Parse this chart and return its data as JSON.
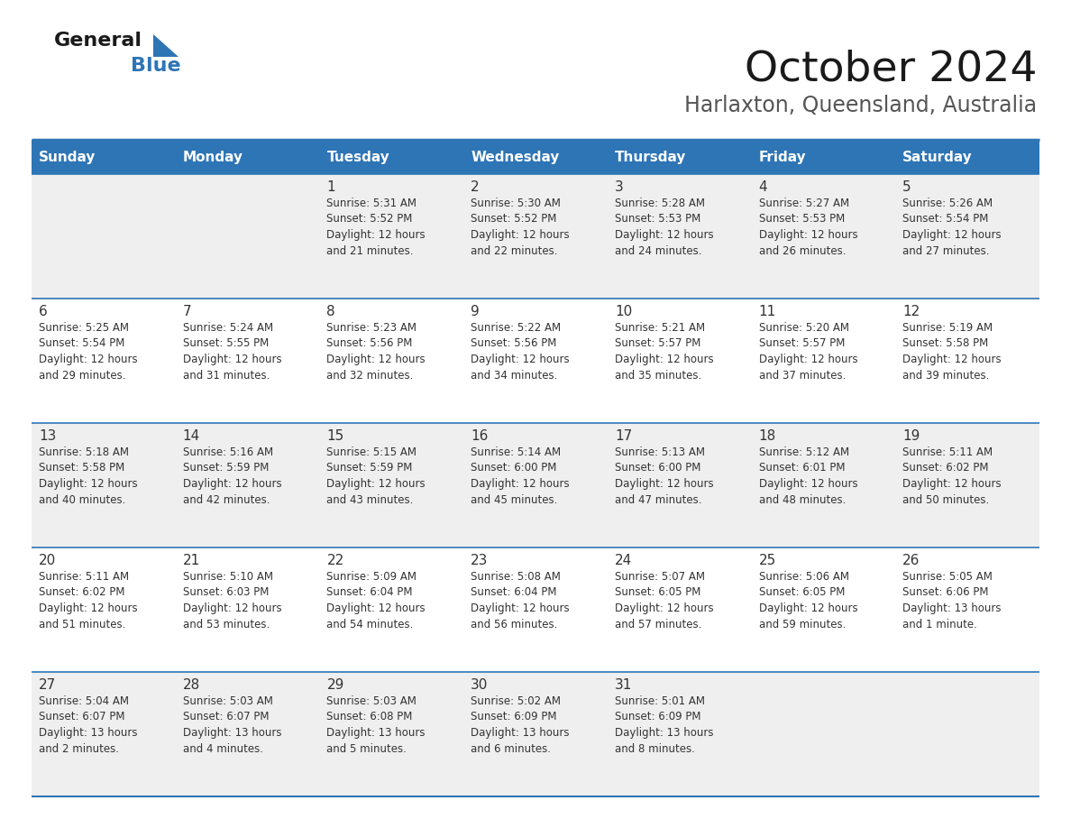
{
  "title": "October 2024",
  "subtitle": "Harlaxton, Queensland, Australia",
  "header_bg": "#2E75B6",
  "header_text": "#FFFFFF",
  "row_bg_light": "#EFEFEF",
  "row_bg_white": "#FFFFFF",
  "cell_text": "#333333",
  "border_color": "#2E75B6",
  "divider_color": "#2E75B6",
  "days_of_week": [
    "Sunday",
    "Monday",
    "Tuesday",
    "Wednesday",
    "Thursday",
    "Friday",
    "Saturday"
  ],
  "weeks": [
    {
      "days": [
        {
          "day": "",
          "info": ""
        },
        {
          "day": "",
          "info": ""
        },
        {
          "day": "1",
          "info": "Sunrise: 5:31 AM\nSunset: 5:52 PM\nDaylight: 12 hours\nand 21 minutes."
        },
        {
          "day": "2",
          "info": "Sunrise: 5:30 AM\nSunset: 5:52 PM\nDaylight: 12 hours\nand 22 minutes."
        },
        {
          "day": "3",
          "info": "Sunrise: 5:28 AM\nSunset: 5:53 PM\nDaylight: 12 hours\nand 24 minutes."
        },
        {
          "day": "4",
          "info": "Sunrise: 5:27 AM\nSunset: 5:53 PM\nDaylight: 12 hours\nand 26 minutes."
        },
        {
          "day": "5",
          "info": "Sunrise: 5:26 AM\nSunset: 5:54 PM\nDaylight: 12 hours\nand 27 minutes."
        }
      ]
    },
    {
      "days": [
        {
          "day": "6",
          "info": "Sunrise: 5:25 AM\nSunset: 5:54 PM\nDaylight: 12 hours\nand 29 minutes."
        },
        {
          "day": "7",
          "info": "Sunrise: 5:24 AM\nSunset: 5:55 PM\nDaylight: 12 hours\nand 31 minutes."
        },
        {
          "day": "8",
          "info": "Sunrise: 5:23 AM\nSunset: 5:56 PM\nDaylight: 12 hours\nand 32 minutes."
        },
        {
          "day": "9",
          "info": "Sunrise: 5:22 AM\nSunset: 5:56 PM\nDaylight: 12 hours\nand 34 minutes."
        },
        {
          "day": "10",
          "info": "Sunrise: 5:21 AM\nSunset: 5:57 PM\nDaylight: 12 hours\nand 35 minutes."
        },
        {
          "day": "11",
          "info": "Sunrise: 5:20 AM\nSunset: 5:57 PM\nDaylight: 12 hours\nand 37 minutes."
        },
        {
          "day": "12",
          "info": "Sunrise: 5:19 AM\nSunset: 5:58 PM\nDaylight: 12 hours\nand 39 minutes."
        }
      ]
    },
    {
      "days": [
        {
          "day": "13",
          "info": "Sunrise: 5:18 AM\nSunset: 5:58 PM\nDaylight: 12 hours\nand 40 minutes."
        },
        {
          "day": "14",
          "info": "Sunrise: 5:16 AM\nSunset: 5:59 PM\nDaylight: 12 hours\nand 42 minutes."
        },
        {
          "day": "15",
          "info": "Sunrise: 5:15 AM\nSunset: 5:59 PM\nDaylight: 12 hours\nand 43 minutes."
        },
        {
          "day": "16",
          "info": "Sunrise: 5:14 AM\nSunset: 6:00 PM\nDaylight: 12 hours\nand 45 minutes."
        },
        {
          "day": "17",
          "info": "Sunrise: 5:13 AM\nSunset: 6:00 PM\nDaylight: 12 hours\nand 47 minutes."
        },
        {
          "day": "18",
          "info": "Sunrise: 5:12 AM\nSunset: 6:01 PM\nDaylight: 12 hours\nand 48 minutes."
        },
        {
          "day": "19",
          "info": "Sunrise: 5:11 AM\nSunset: 6:02 PM\nDaylight: 12 hours\nand 50 minutes."
        }
      ]
    },
    {
      "days": [
        {
          "day": "20",
          "info": "Sunrise: 5:11 AM\nSunset: 6:02 PM\nDaylight: 12 hours\nand 51 minutes."
        },
        {
          "day": "21",
          "info": "Sunrise: 5:10 AM\nSunset: 6:03 PM\nDaylight: 12 hours\nand 53 minutes."
        },
        {
          "day": "22",
          "info": "Sunrise: 5:09 AM\nSunset: 6:04 PM\nDaylight: 12 hours\nand 54 minutes."
        },
        {
          "day": "23",
          "info": "Sunrise: 5:08 AM\nSunset: 6:04 PM\nDaylight: 12 hours\nand 56 minutes."
        },
        {
          "day": "24",
          "info": "Sunrise: 5:07 AM\nSunset: 6:05 PM\nDaylight: 12 hours\nand 57 minutes."
        },
        {
          "day": "25",
          "info": "Sunrise: 5:06 AM\nSunset: 6:05 PM\nDaylight: 12 hours\nand 59 minutes."
        },
        {
          "day": "26",
          "info": "Sunrise: 5:05 AM\nSunset: 6:06 PM\nDaylight: 13 hours\nand 1 minute."
        }
      ]
    },
    {
      "days": [
        {
          "day": "27",
          "info": "Sunrise: 5:04 AM\nSunset: 6:07 PM\nDaylight: 13 hours\nand 2 minutes."
        },
        {
          "day": "28",
          "info": "Sunrise: 5:03 AM\nSunset: 6:07 PM\nDaylight: 13 hours\nand 4 minutes."
        },
        {
          "day": "29",
          "info": "Sunrise: 5:03 AM\nSunset: 6:08 PM\nDaylight: 13 hours\nand 5 minutes."
        },
        {
          "day": "30",
          "info": "Sunrise: 5:02 AM\nSunset: 6:09 PM\nDaylight: 13 hours\nand 6 minutes."
        },
        {
          "day": "31",
          "info": "Sunrise: 5:01 AM\nSunset: 6:09 PM\nDaylight: 13 hours\nand 8 minutes."
        },
        {
          "day": "",
          "info": ""
        },
        {
          "day": "",
          "info": ""
        }
      ]
    }
  ],
  "logo_color_general": "#1a1a1a",
  "logo_color_blue": "#2E75B6",
  "logo_triangle_color": "#2E75B6",
  "title_fontsize": 34,
  "subtitle_fontsize": 17,
  "header_fontsize": 11,
  "day_num_fontsize": 11,
  "info_fontsize": 8.5
}
